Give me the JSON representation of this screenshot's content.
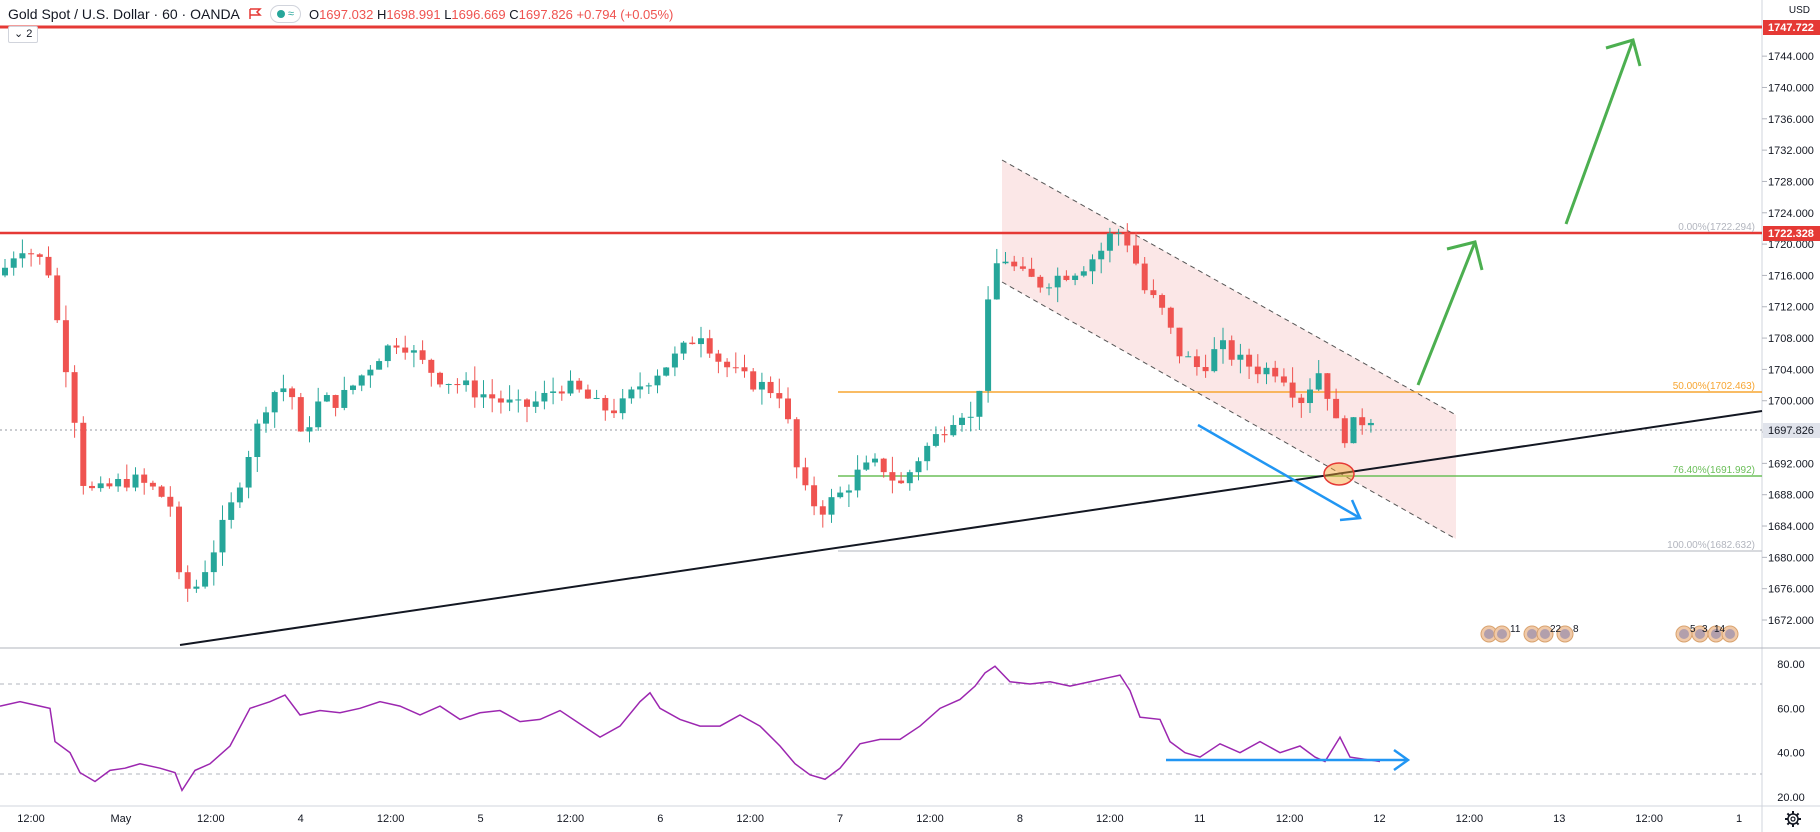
{
  "header": {
    "title": "Gold Spot / U.S. Dollar",
    "interval": "60",
    "broker": "OANDA",
    "open_label": "O",
    "open": "1697.032",
    "high_label": "H",
    "high": "1698.991",
    "low_label": "L",
    "low": "1696.669",
    "close_label": "C",
    "close": "1697.826",
    "change": "+0.794 (+0.05%)",
    "indicator_count": "2",
    "wave_icon": "≈"
  },
  "currency": "USD",
  "price_axis": {
    "ticks": [
      "1744.000",
      "1740.000",
      "1736.000",
      "1732.000",
      "1728.000",
      "1724.000",
      "1720.000",
      "1716.000",
      "1712.000",
      "1708.000",
      "1704.000",
      "1700.000",
      "1696.000",
      "1692.000",
      "1688.000",
      "1684.000",
      "1680.000",
      "1676.000",
      "1672.000"
    ],
    "labels": {
      "top_resistance": "1747.722",
      "resistance": "1722.328",
      "last_price": "1697.826"
    }
  },
  "rsi_axis": {
    "ticks": [
      "80.00",
      "60.00",
      "40.00",
      "20.00"
    ]
  },
  "time_axis": {
    "labels": [
      "12:00",
      "May",
      "12:00",
      "4",
      "12:00",
      "5",
      "12:00",
      "6",
      "12:00",
      "7",
      "12:00",
      "8",
      "12:00",
      "11",
      "12:00",
      "12",
      "12:00",
      "13",
      "12:00",
      "1"
    ]
  },
  "fib_levels": {
    "f0": "0.00%(1722.294)",
    "f50": "50.00%(1702.463)",
    "f764": "76.40%(1691.992)",
    "f100": "100.00%(1682.632)"
  },
  "events": {
    "group1": [
      "11",
      "22",
      "8"
    ],
    "group2": [
      "5",
      "3",
      "14"
    ]
  },
  "colors": {
    "up": "#26a69a",
    "down": "#ef5350",
    "resistance": "#e53935",
    "fib50": "#f7a531",
    "fib764": "#6bbf59",
    "rsi": "#9c27b0",
    "arrow_green": "#4caf50",
    "arrow_blue": "#2196f3"
  },
  "icons": {
    "settings": "gear-icon"
  }
}
